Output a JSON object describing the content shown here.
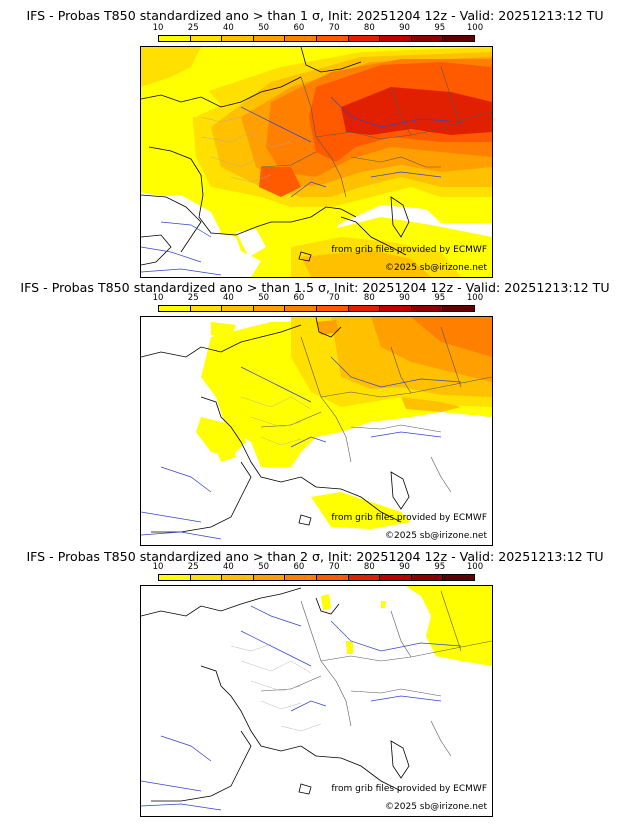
{
  "colorbar": {
    "labels": [
      "10",
      "25",
      "40",
      "50",
      "60",
      "70",
      "80",
      "90",
      "95",
      "100"
    ],
    "colors": [
      "#ffff00",
      "#ffe000",
      "#ffc000",
      "#ffa000",
      "#ff8000",
      "#ff5a00",
      "#e02000",
      "#c00000",
      "#900000",
      "#600000"
    ]
  },
  "credits": {
    "source": "from grib files provided by ECMWF",
    "copyright": "©2025 sb@irizone.net"
  },
  "panels": [
    {
      "title": "IFS - Probas T850  standardized ano > than 1 σ, Init: 20251204 12z - Valid: 20251213:12 TU"
    },
    {
      "title": "IFS - Probas T850  standardized ano > than 1.5 σ, Init: 20251204 12z - Valid: 20251213:12 TU"
    },
    {
      "title": "IFS - Probas T850  standardized ano > than 2 σ, Init: 20251204 12z - Valid: 20251213:12 TU"
    }
  ]
}
